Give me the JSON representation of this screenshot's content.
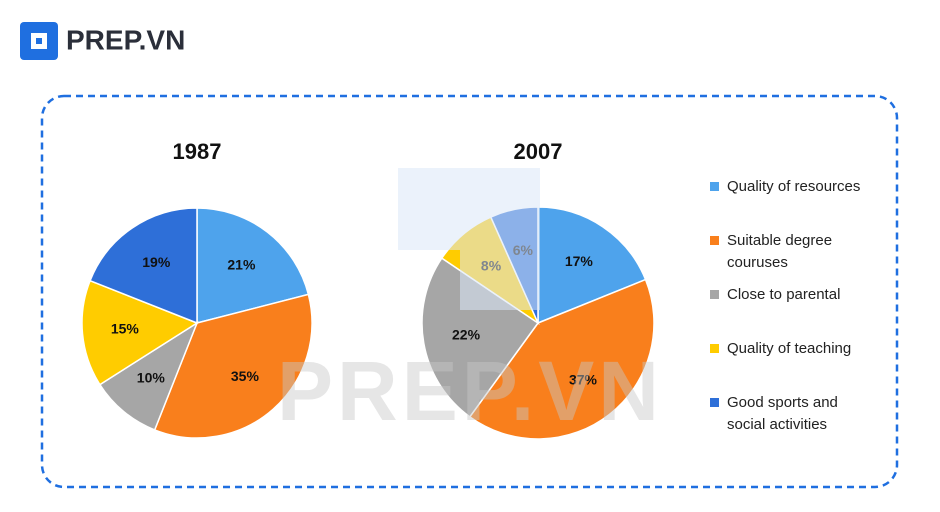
{
  "brand": "PREP.VN",
  "watermark": "PREP.VN",
  "chart_data": [
    {
      "type": "pie",
      "title": "1987",
      "categories": [
        "Quality of resources",
        "Suitable degree couruses",
        "Close to parental",
        "Quality of teaching",
        "Good sports and social activities"
      ],
      "values": [
        21,
        35,
        10,
        15,
        19
      ],
      "value_labels": [
        "21%",
        "35%",
        "10%",
        "15%",
        "19%"
      ],
      "colors": [
        "#4ea3ec",
        "#f97f1c",
        "#a6a6a6",
        "#ffcc00",
        "#2e6fd8"
      ]
    },
    {
      "type": "pie",
      "title": "2007",
      "categories": [
        "Quality of resources",
        "Suitable degree couruses",
        "Close to parental",
        "Quality of teaching",
        "Good sports and social activities"
      ],
      "values": [
        17,
        37,
        22,
        8,
        6
      ],
      "value_labels": [
        "17%",
        "37%",
        "22%",
        "8%",
        "6%"
      ],
      "colors": [
        "#4ea3ec",
        "#f97f1c",
        "#a6a6a6",
        "#ffcc00",
        "#2e6fd8"
      ]
    }
  ]
}
